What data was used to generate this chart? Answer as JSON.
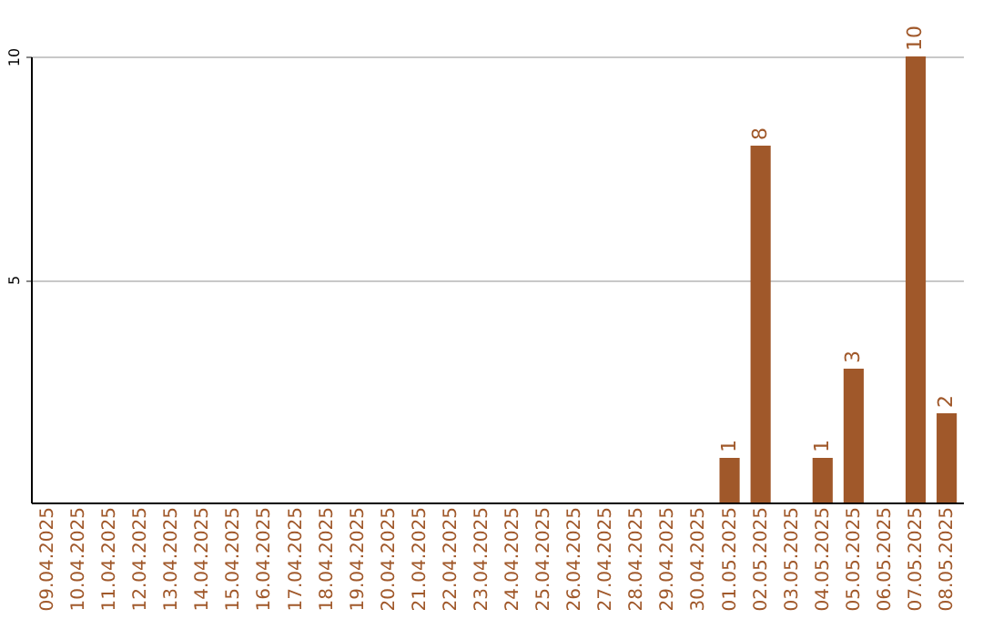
{
  "chart_data": {
    "type": "bar",
    "categories": [
      "09.04.2025",
      "10.04.2025",
      "11.04.2025",
      "12.04.2025",
      "13.04.2025",
      "14.04.2025",
      "15.04.2025",
      "16.04.2025",
      "17.04.2025",
      "18.04.2025",
      "19.04.2025",
      "20.04.2025",
      "21.04.2025",
      "22.04.2025",
      "23.04.2025",
      "24.04.2025",
      "25.04.2025",
      "26.04.2025",
      "27.04.2025",
      "28.04.2025",
      "29.04.2025",
      "30.04.2025",
      "01.05.2025",
      "02.05.2025",
      "03.05.2025",
      "04.05.2025",
      "05.05.2025",
      "06.05.2025",
      "07.05.2025",
      "08.05.2025"
    ],
    "values": [
      0,
      0,
      0,
      0,
      0,
      0,
      0,
      0,
      0,
      0,
      0,
      0,
      0,
      0,
      0,
      0,
      0,
      0,
      0,
      0,
      0,
      0,
      1,
      8,
      0,
      1,
      3,
      0,
      10,
      2
    ],
    "value_labels": [
      null,
      null,
      null,
      null,
      null,
      null,
      null,
      null,
      null,
      null,
      null,
      null,
      null,
      null,
      null,
      null,
      null,
      null,
      null,
      null,
      null,
      null,
      "1",
      "8",
      null,
      "1",
      "3",
      null,
      "10",
      "2"
    ],
    "color": "#a0582a",
    "ylim": [
      0,
      10
    ],
    "yticks": [
      5,
      10
    ],
    "grid": "y"
  }
}
